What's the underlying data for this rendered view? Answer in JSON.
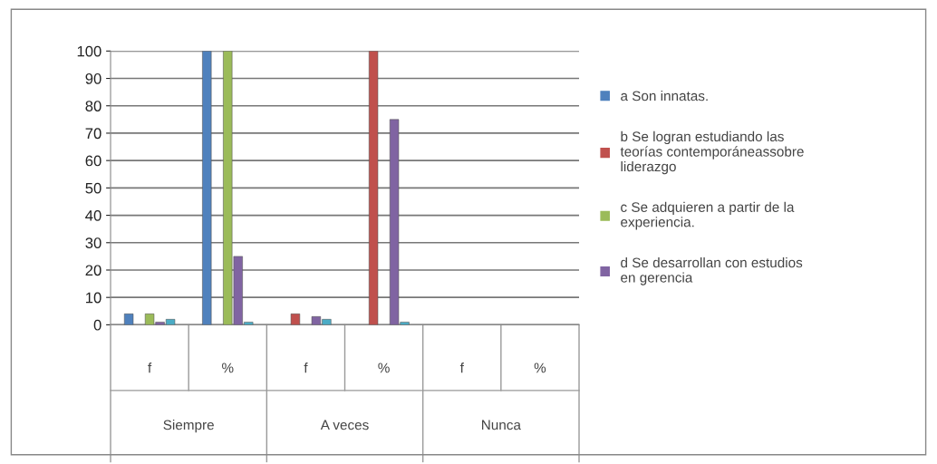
{
  "chart_data": {
    "type": "bar",
    "categories": [
      "f",
      "%",
      "f",
      "%",
      "f",
      "%"
    ],
    "annotations": [
      "Siempre",
      "A veces",
      "Nunca"
    ],
    "series": [
      {
        "name": "a Son innatas.",
        "color": "#4f81bd",
        "values": [
          4,
          100,
          null,
          null,
          null,
          null
        ]
      },
      {
        "name": "b Se logran estudiando las teorías contemporáneassobre liderazgo",
        "color": "#c0504d",
        "values": [
          null,
          null,
          4,
          100,
          null,
          null
        ]
      },
      {
        "name": "c Se adquieren a partir de la experiencia.",
        "color": "#9bbb59",
        "values": [
          4,
          100,
          null,
          null,
          null,
          null
        ]
      },
      {
        "name": "d Se desarrollan con estudios en gerencia",
        "color": "#8064a2",
        "values": [
          1,
          25,
          3,
          75,
          null,
          null
        ]
      },
      {
        "color": "#4bacc6",
        "values": [
          2,
          1,
          2,
          1,
          null,
          null
        ]
      }
    ],
    "ylim": [
      0,
      100
    ],
    "yticks": [
      0,
      10,
      20,
      30,
      40,
      50,
      60,
      70,
      80,
      90,
      100
    ],
    "grid": "y",
    "legend": "right"
  }
}
